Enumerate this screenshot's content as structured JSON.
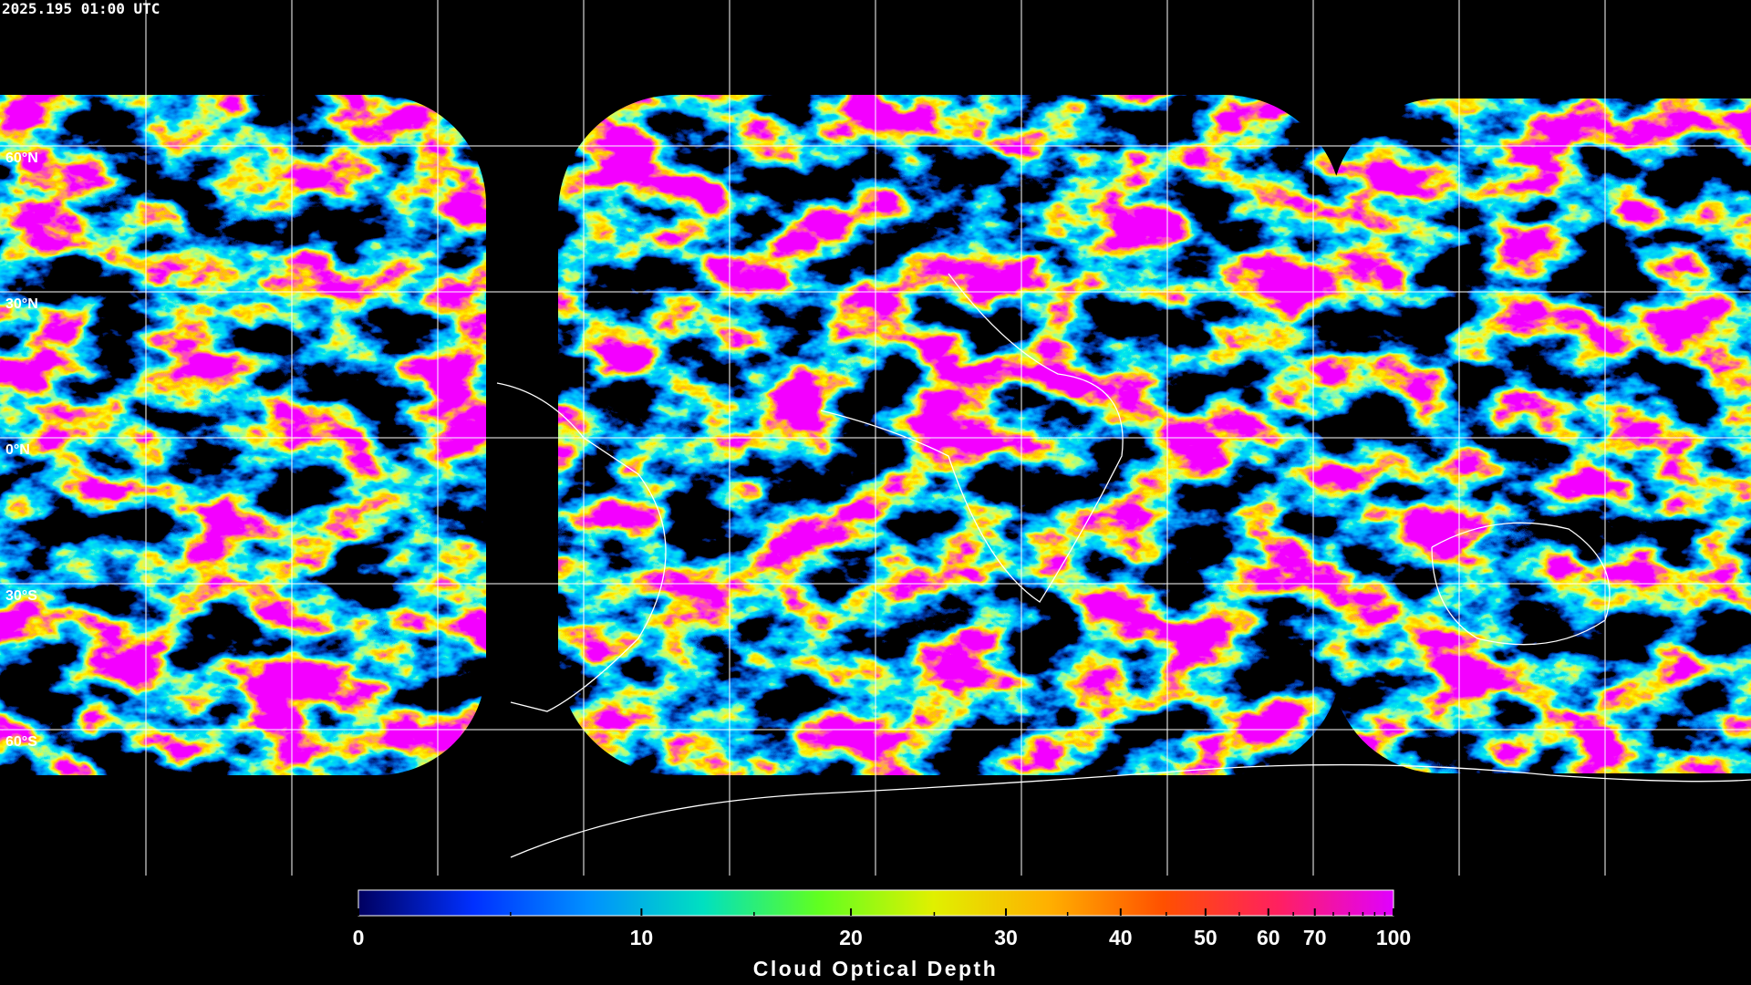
{
  "timestamp": "2025.195 01:00 UTC",
  "latitude_labels": [
    "60°N",
    "30°N",
    "0°N",
    "30°S",
    "60°S"
  ],
  "colorbar": {
    "label": "Cloud Optical Depth",
    "range": [
      0,
      100
    ],
    "ticks": [
      0,
      10,
      20,
      30,
      40,
      50,
      60,
      70,
      100
    ],
    "minor_ticks": [
      5,
      15,
      25,
      35,
      45,
      55,
      65,
      75,
      80,
      85,
      90,
      95
    ],
    "colors": [
      "#000060",
      "#0030ff",
      "#0090ff",
      "#00e0c0",
      "#60ff20",
      "#e0f000",
      "#ffb000",
      "#ff5000",
      "#ff2060",
      "#e000ff"
    ]
  }
}
